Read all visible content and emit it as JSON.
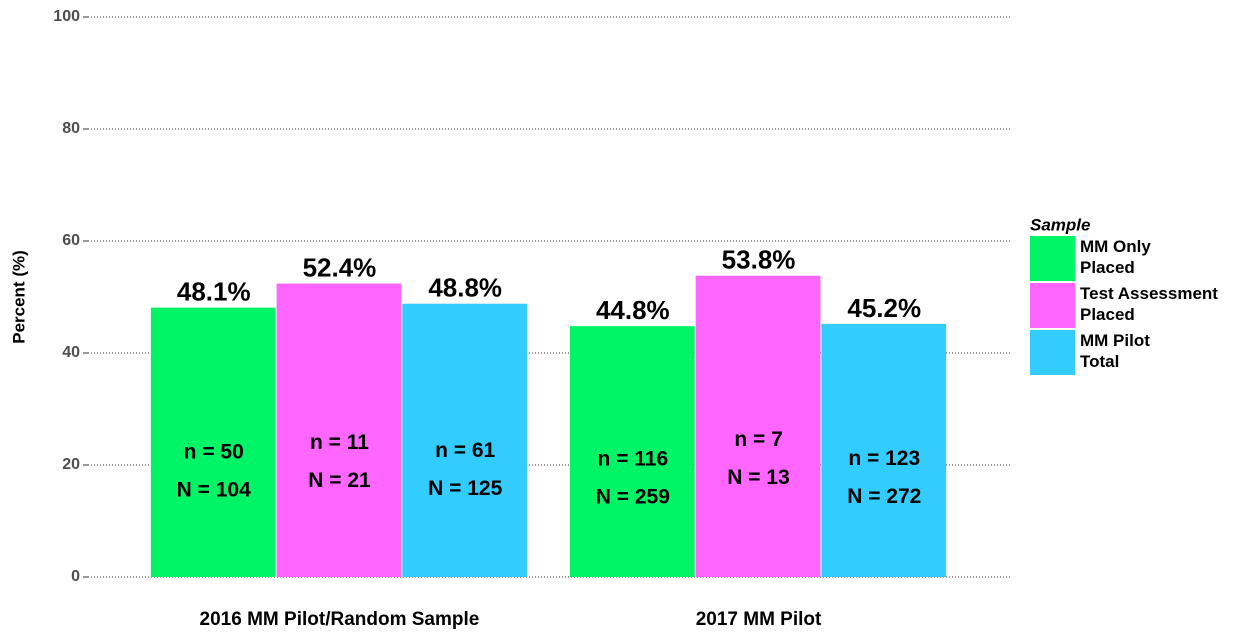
{
  "chart_data": {
    "type": "bar",
    "y_label": "Percent (%)",
    "categories": [
      "2016 MM Pilot/Random Sample",
      "2017 MM Pilot"
    ],
    "legend_title": "Sample",
    "legend": "right",
    "grid": true,
    "ylim": [
      0,
      100
    ],
    "yticks": [
      0,
      20,
      40,
      60,
      80,
      100
    ],
    "series": [
      {
        "name": "MM Only Placed",
        "color": "#00f566",
        "values": [
          48.1,
          44.8
        ],
        "value_labels": [
          "48.1%",
          "44.8%"
        ],
        "inner_labels": [
          [
            "n = 50",
            "N = 104"
          ],
          [
            "n = 116",
            "N = 259"
          ]
        ]
      },
      {
        "name": "Test Assessment Placed",
        "color": "#ff66ff",
        "values": [
          52.4,
          53.8
        ],
        "value_labels": [
          "52.4%",
          "53.8%"
        ],
        "inner_labels": [
          [
            "n = 11",
            "N = 21"
          ],
          [
            "n = 7",
            "N = 13"
          ]
        ]
      },
      {
        "name": "MM Pilot Total",
        "color": "#33ccff",
        "values": [
          48.8,
          45.2
        ],
        "value_labels": [
          "48.8%",
          "45.2%"
        ],
        "inner_labels": [
          [
            "n = 61",
            "N = 125"
          ],
          [
            "n = 123",
            "N = 272"
          ]
        ]
      }
    ]
  }
}
